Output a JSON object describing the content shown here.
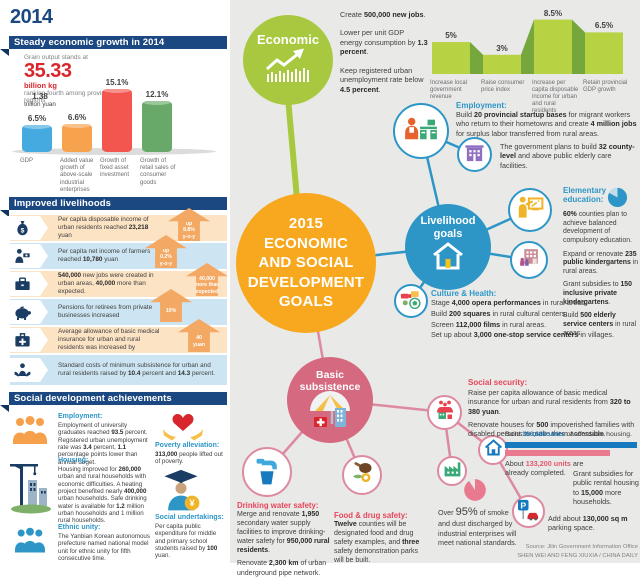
{
  "meta": {
    "source_line1": "Source: Jilin Government Information Office",
    "source_line2": "SHEN WEI AND FENG XIUXIA / CHINA DAILY"
  },
  "colors": {
    "navy": "#1c4882",
    "blue": "#2d96c6",
    "green": "#a8c93f",
    "orange": "#f7a81f",
    "pink": "#d5697f",
    "red_accent": "#e8455a",
    "arrow_orange": "#f3a963"
  },
  "left": {
    "year": "2014",
    "growth": {
      "header": "Steady economic growth in 2014",
      "grain_intro": "Grain output stands at",
      "grain_value": "35.33",
      "grain_unit": "billion kg",
      "grain_note": "ranking fourth among provincial regions"
    },
    "livelihoods": {
      "header": "Improved livelihoods",
      "rows": [
        {
          "icon": "money-bag-icon",
          "html": "Per capita disposable income of urban residents reached <b>23,218</b> yuan",
          "badge": [
            "up",
            "8.8%",
            "y-o-y"
          ]
        },
        {
          "icon": "farmer-income-icon",
          "html": "Per capita net income of farmers reached <b>10,780</b> yuan",
          "badge": [
            "up",
            "0.2%",
            "y-o-y"
          ]
        },
        {
          "icon": "briefcase-icon",
          "html": "<b>540,000</b> new jobs were created in urban areas, <b>40,000</b> more than expected.",
          "badge": [
            "40,000",
            "more than",
            "expected"
          ]
        },
        {
          "icon": "piggy-bank-icon",
          "html": "Pensions for retirees from private businesses increased",
          "badge": [
            "10%"
          ]
        },
        {
          "icon": "medical-kit-icon",
          "html": "Average allowance of basic medical insurance for urban and rural residents was increased by",
          "badge": [
            "40",
            "yuan"
          ]
        },
        {
          "icon": "subsistence-hands-icon",
          "html": "Standard costs of minimum subsistence for urban and rural residents raised by <b>10.4</b> percent and <b>14.3</b> percent.",
          "badge": []
        }
      ]
    },
    "social": {
      "header": "Social development achievements",
      "employment": {
        "title": "Employment:",
        "html": "Employment of university graduates reached <b>93.5</b> percent. Registered urban unemployment rate was <b>3.4</b> percent, <b>1.1</b> percentage points lower than annual target."
      },
      "housing": {
        "title": "Housing:",
        "html": "Housing improved for <b>260,000</b> urban and rural households with economic difficulties. A heating project benefited nearly <b>400,000</b> urban households. Safe drinking water is available for <b>1.2</b> million urban households and 1 million rural households."
      },
      "ethnic": {
        "title": "Ethnic unity:",
        "html": "The Yanbian Korean autonomous prefecture named national model unit for ethnic unity for fifth consecutive time."
      },
      "poverty": {
        "title": "Poverty alleviation:",
        "html": "<b>313,000</b> people lifted out of poverty."
      },
      "undertakings": {
        "title": "Social undertakings:",
        "html": "Per capita public expenditure for middle and primary school students raised by <b>100</b> yuan."
      }
    }
  },
  "right": {
    "economic": {
      "label": "Economic",
      "goals": [
        "Create <b>500,000 new jobs</b>.",
        "Lower per unit GDP energy consumption by <b>1.3 percent</b>.",
        "Keep registered urban unemployment rate below <b>4.5 percent</b>."
      ]
    },
    "employment": {
      "title": "Employment:",
      "html": "Build <b>20 provincial startup bases</b> for migrant workers who return to their hometowns and create <b>4 million jobs</b> for surplus labor transferred from rural areas."
    },
    "elderly_html": "The government plans to build <b>32 county-level</b> and above public elderly care facilities.",
    "central_label": "2015\nECONOMIC\nAND SOCIAL\nDEVELOPMENT\nGOALS",
    "livelihood_label": "Livelihood\ngoals",
    "basic_label": "Basic\nsubsistence",
    "education": {
      "title": "Elementary education:",
      "items": [
        "<b>60%</b> counties plan to achieve balanced development of compulsory education.",
        "Expand or renovate <b>235 public kindergartens</b> in rural areas.",
        "Grant subsidies to <b>150 inclusive private kindergartens</b>.",
        "Build <b>500 elderly service centers</b> in rural areas."
      ]
    },
    "culture": {
      "title": "Culture & Health:",
      "items": [
        "Stage <b>4,000 opera performances</b> in rural areas.",
        "Build <b>200 squares</b> in rural cultural centers.",
        "Screen <b>112,000 films</b> in rural areas.",
        "Set up about <b>3,000 one-stop service centers</b> in villages."
      ]
    },
    "security": {
      "title": "Social security:",
      "p1": "Raise per capita allowance of basic medical insurance for urban and rural residents from <b>320 to 380 yuan</b>.",
      "p2": "Renovate houses for <b>500</b> impoverished families with disabled persons to make them accessible."
    },
    "housing": {
      "build_html": "Build <span class='hl-b'>166,600 units</span> of affordable housing.",
      "completed_html": "About <span class='hl-p'>133,200 units</span> are already completed.",
      "subsidy_html": "Grant subsidies for public rental housing to <b>15,000</b> more households."
    },
    "smoke_html": "Over <span class='big'>95%</span> of smoke and dust discharged by industrial enterprises will meet national standards.",
    "parking_html": "Add about <b>130,000 sq m</b> parking space.",
    "water": {
      "title": "Drinking water safety:",
      "p1": "Merge and renovate <b>1,950</b> secondary water supply facilities to improve drinking-water safety for <b>950,000 rural residents</b>.",
      "p2": "Renovate <b>2,300 km</b> of urban underground pipe network."
    },
    "food": {
      "title": "Food & drug safety:",
      "html": "<b>Twelve</b> counties will be designated food and drug safety examples, and <b>three</b> safety demonstration parks will be built."
    }
  },
  "chart_data": [
    {
      "type": "bar",
      "title": "Steady economic growth in 2014",
      "categories": [
        "GDP",
        "Added value growth of above-scale industrial enterprises",
        "Growth of fixed asset investment",
        "Growth of retail sales of consumer goods"
      ],
      "values": [
        6.5,
        6.6,
        15.1,
        12.1
      ],
      "value_labels": [
        "6.5%",
        "6.6%",
        "15.1%",
        "12.1%"
      ],
      "gdp_extra_value": "1.38",
      "gdp_extra_unit": "trillion yuan",
      "colors": [
        "#45aadf",
        "#f7a24d",
        "#f2564f",
        "#68a868"
      ],
      "ylim": [
        0,
        16
      ]
    },
    {
      "type": "area",
      "categories": [
        "Increase local government revenue",
        "Raise consumer price index",
        "Increase per capita disposable income for urban and rural residents",
        "Retain provincial GDP growth"
      ],
      "values": [
        5,
        3,
        8.5,
        6.5
      ],
      "value_labels": [
        "5%",
        "3%",
        "8.5%",
        "6.5%"
      ],
      "ylim": [
        0,
        9
      ],
      "colors": {
        "plateau": "#b7d344",
        "transition": "#76a73d"
      }
    }
  ]
}
